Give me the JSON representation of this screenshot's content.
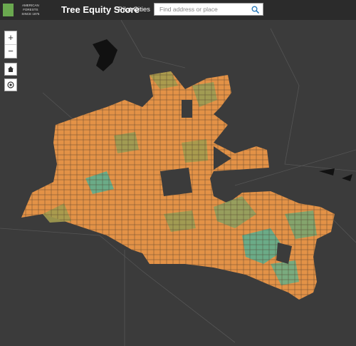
{
  "header": {
    "logo": {
      "name": "AMERICAN FORESTS",
      "since": "SINCE 1875"
    },
    "title": "Tree Equity Score",
    "nav": "Pilot Cities",
    "search": {
      "placeholder": "Find address or place"
    }
  },
  "map_controls": {
    "zoom_in": "+",
    "zoom_out": "−"
  }
}
